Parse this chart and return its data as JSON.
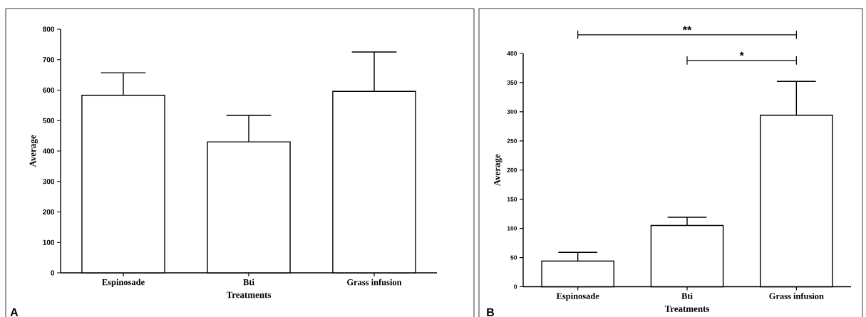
{
  "chart_data": [
    {
      "type": "bar",
      "categories": [
        "Espinosade",
        "Bti",
        "Grass infusion"
      ],
      "values": [
        583,
        430,
        596
      ],
      "errors": [
        [
          583,
          657
        ],
        [
          430,
          517
        ],
        [
          596,
          725
        ]
      ],
      "color": "#ffffff",
      "xlabel": "Treatments",
      "ylabel": "Average",
      "ylim": [
        0,
        800
      ],
      "yticks": [
        0,
        100,
        200,
        300,
        400,
        500,
        600,
        700,
        800
      ],
      "annotations": [
        "A"
      ]
    },
    {
      "type": "bar",
      "categories": [
        "Espinosade",
        "Bti",
        "Grass infusion"
      ],
      "values": [
        44,
        105,
        294
      ],
      "errors": [
        [
          44,
          59
        ],
        [
          105,
          119
        ],
        [
          294,
          352
        ]
      ],
      "color": "#ffffff",
      "xlabel": "Treatments",
      "ylabel": "Average",
      "ylim": [
        0,
        400
      ],
      "yticks": [
        0,
        50,
        100,
        150,
        200,
        250,
        300,
        350,
        400
      ],
      "annotations": [
        "B",
        "**",
        "*"
      ]
    }
  ]
}
